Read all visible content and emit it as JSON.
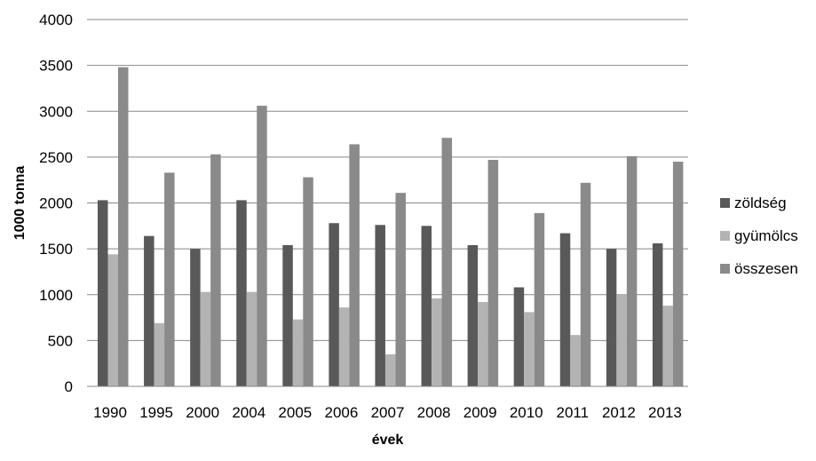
{
  "chart_data": {
    "type": "bar",
    "title": "",
    "xlabel": "évek",
    "ylabel": "1000 tonna",
    "ylim": [
      0,
      4000
    ],
    "yticks": [
      "0",
      "500",
      "1000",
      "1500",
      "2000",
      "2500",
      "3000",
      "3500",
      "4000"
    ],
    "categories": [
      "1990",
      "1995",
      "2000",
      "2004",
      "2005",
      "2006",
      "2007",
      "2008",
      "2009",
      "2010",
      "2011",
      "2012",
      "2013"
    ],
    "grid": true,
    "legend_position": "right",
    "series": [
      {
        "name": "zöldség",
        "color": "#595959",
        "values": [
          2030,
          1640,
          1500,
          2030,
          1540,
          1780,
          1760,
          1750,
          1540,
          1080,
          1670,
          1500,
          1560
        ]
      },
      {
        "name": "gyümölcs",
        "color": "#b3b3b3",
        "values": [
          1440,
          690,
          1030,
          1030,
          730,
          860,
          350,
          960,
          920,
          810,
          560,
          1000,
          880
        ]
      },
      {
        "name": "összesen",
        "color": "#8a8a8a",
        "values": [
          3480,
          2330,
          2530,
          3060,
          2280,
          2640,
          2110,
          2710,
          2470,
          1890,
          2220,
          2510,
          2450
        ]
      }
    ]
  }
}
